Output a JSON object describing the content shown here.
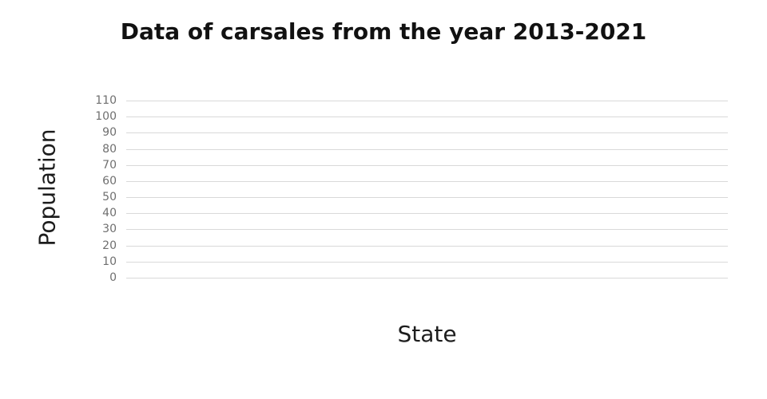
{
  "chart_data": {
    "type": "bar",
    "title": "Data of carsales from the year 2013-2021",
    "xlabel": "State",
    "ylabel": "Population",
    "categories": [],
    "series": [],
    "yticks": [
      0,
      10,
      20,
      30,
      40,
      50,
      60,
      70,
      80,
      90,
      100,
      110
    ],
    "ylim": [
      0,
      110
    ],
    "xticks": [],
    "grid": true,
    "legend": false,
    "plot_empty": true,
    "colors": {
      "background": "#ffffff",
      "title_text": "#111111",
      "axis_label_text": "#1d1d1d",
      "tick_label_text": "#6f6f6f",
      "gridline": "#d9d9d9"
    }
  }
}
